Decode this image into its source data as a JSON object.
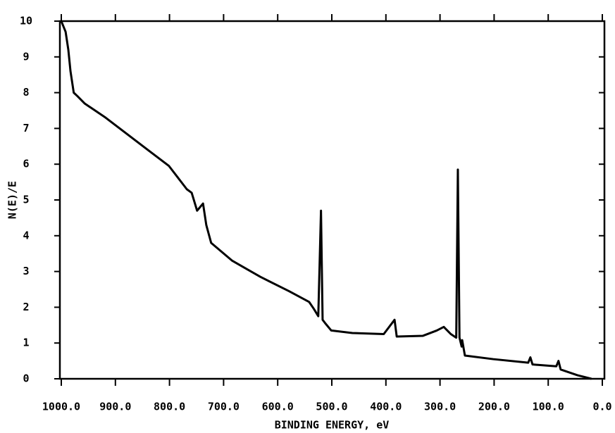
{
  "chart_data": {
    "type": "line",
    "xlabel": "BINDING ENERGY, eV",
    "ylabel": "N(E)/E",
    "x": [
      1000,
      992,
      987,
      983,
      977,
      970,
      957,
      918,
      879,
      840,
      801,
      768,
      759,
      749,
      738,
      732,
      723,
      684,
      632,
      579,
      542,
      533,
      525,
      520,
      517,
      512,
      501,
      462,
      404,
      384,
      380,
      332,
      306,
      293,
      280,
      270,
      267,
      264,
      260,
      259,
      254,
      202,
      137,
      133,
      129,
      85,
      81,
      77,
      46,
      20
    ],
    "series": [
      {
        "color": "#000000",
        "values": [
          10.0,
          9.7,
          9.2,
          8.6,
          8.0,
          7.9,
          7.7,
          7.3,
          6.85,
          6.4,
          5.95,
          5.3,
          5.2,
          4.7,
          4.9,
          4.3,
          3.8,
          3.3,
          2.85,
          2.45,
          2.15,
          1.95,
          1.75,
          4.7,
          1.65,
          1.55,
          1.35,
          1.28,
          1.25,
          1.65,
          1.18,
          1.2,
          1.35,
          1.45,
          1.25,
          1.15,
          5.85,
          1.15,
          0.9,
          1.08,
          0.65,
          0.55,
          0.45,
          0.6,
          0.4,
          0.35,
          0.5,
          0.26,
          0.1,
          0.0
        ]
      }
    ],
    "xlim": [
      1000,
      0
    ],
    "xticks": [
      {
        "value": 1000,
        "label": "1000.0"
      },
      {
        "value": 900,
        "label": "900.0"
      },
      {
        "value": 800,
        "label": "800.0"
      },
      {
        "value": 700,
        "label": "700.0"
      },
      {
        "value": 600,
        "label": "600.0"
      },
      {
        "value": 500,
        "label": "500.0"
      },
      {
        "value": 400,
        "label": "400.0"
      },
      {
        "value": 300,
        "label": "300.0"
      },
      {
        "value": 200,
        "label": "200.0"
      },
      {
        "value": 100,
        "label": "100.0"
      },
      {
        "value": 0,
        "label": "0.0"
      }
    ],
    "ylim": [
      0,
      10
    ],
    "yticks": [
      0,
      1,
      2,
      3,
      4,
      5,
      6,
      7,
      8,
      9,
      10
    ]
  }
}
